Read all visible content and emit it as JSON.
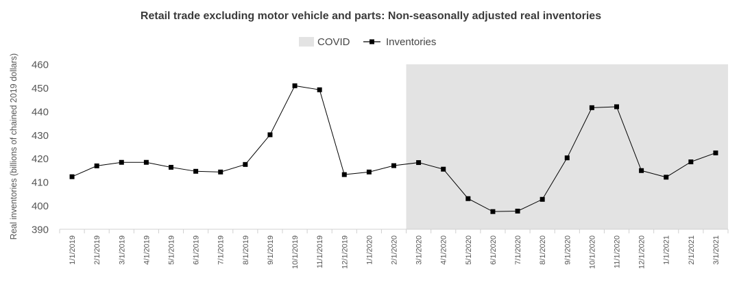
{
  "chart_data": {
    "type": "line",
    "title": "Retail trade excluding motor vehicle and parts: Non-seasonally  adjusted real inventories",
    "xlabel": "",
    "ylabel": "Real inventories (billions of chained 2019 dollars)",
    "ylim": [
      390,
      460
    ],
    "yticks": [
      390,
      400,
      410,
      420,
      430,
      440,
      450,
      460
    ],
    "grid": false,
    "legend": "top-center",
    "categories": [
      "1/1/2019",
      "2/1/2019",
      "3/1/2019",
      "4/1/2019",
      "5/1/2019",
      "6/1/2019",
      "7/1/2019",
      "8/1/2019",
      "9/1/2019",
      "10/1/2019",
      "11/1/2019",
      "12/1/2019",
      "1/1/2020",
      "2/1/2020",
      "3/1/2020",
      "4/1/2020",
      "5/1/2020",
      "6/1/2020",
      "7/1/2020",
      "8/1/2020",
      "9/1/2020",
      "10/1/2020",
      "11/1/2020",
      "12/1/2020",
      "1/1/2021",
      "2/1/2021",
      "3/1/2021"
    ],
    "series": [
      {
        "name": "Inventories",
        "color": "#000000",
        "values": [
          412.3,
          416.9,
          418.4,
          418.4,
          416.3,
          414.6,
          414.3,
          417.5,
          430.1,
          450.9,
          449.2,
          413.2,
          414.3,
          417.0,
          418.3,
          415.5,
          403.0,
          397.5,
          397.7,
          402.7,
          420.3,
          441.6,
          442.0,
          414.9,
          412.1,
          418.6,
          422.4
        ]
      }
    ],
    "shaded_region": {
      "name": "COVID",
      "color": "#e3e3e3",
      "start": "3/1/2020",
      "end": "3/1/2021"
    }
  }
}
